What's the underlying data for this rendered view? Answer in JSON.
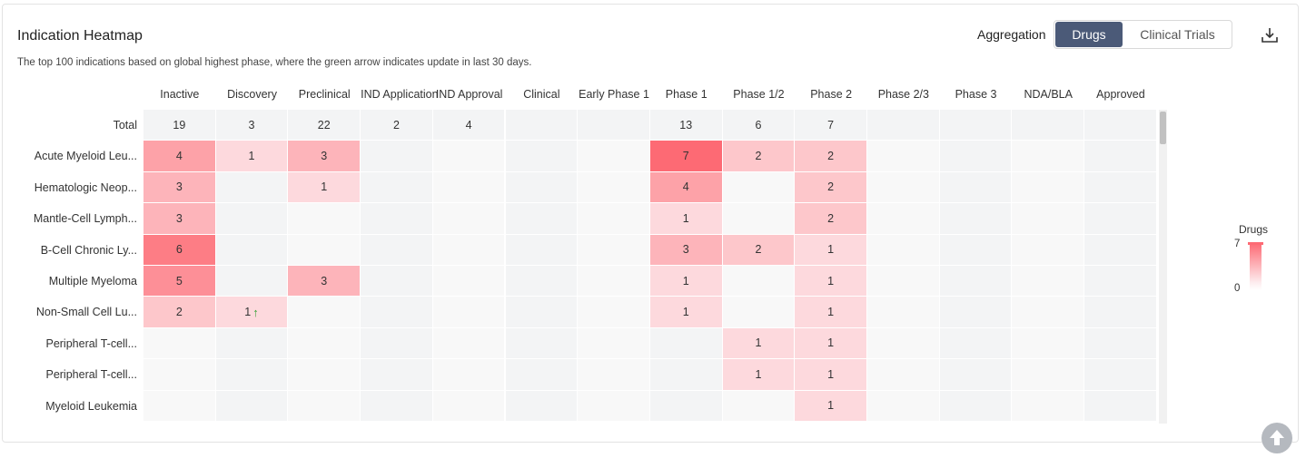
{
  "header": {
    "title": "Indication Heatmap",
    "subtitle": "The top 100 indications based on global highest phase, where the green arrow indicates update in last 30 days.",
    "aggregation_label": "Aggregation",
    "aggregation_options": [
      "Drugs",
      "Clinical Trials"
    ],
    "aggregation_selected": "Drugs",
    "download_icon": "download-icon"
  },
  "legend": {
    "title": "Drugs",
    "max": "7",
    "min": "0",
    "color_high": "#fd6a74",
    "color_low": "#fdeef0"
  },
  "chart_data": {
    "type": "heatmap",
    "title": "Indication Heatmap",
    "columns": [
      "Inactive",
      "Discovery",
      "Preclinical",
      "IND Application",
      "IND Approval",
      "Clinical",
      "Early Phase 1",
      "Phase 1",
      "Phase 1/2",
      "Phase 2",
      "Phase 2/3",
      "Phase 3",
      "NDA/BLA",
      "Approved"
    ],
    "totals": {
      "label": "Total",
      "values": [
        19,
        3,
        22,
        2,
        4,
        null,
        null,
        13,
        6,
        7,
        null,
        null,
        null,
        null
      ]
    },
    "rows": [
      {
        "label": "Acute Myeloid Leu...",
        "values": [
          4,
          1,
          3,
          null,
          null,
          null,
          null,
          7,
          2,
          2,
          null,
          null,
          null,
          null
        ],
        "updated": []
      },
      {
        "label": "Hematologic Neop...",
        "values": [
          3,
          null,
          1,
          null,
          null,
          null,
          null,
          4,
          null,
          2,
          null,
          null,
          null,
          null
        ],
        "updated": []
      },
      {
        "label": "Mantle-Cell Lymph...",
        "values": [
          3,
          null,
          null,
          null,
          null,
          null,
          null,
          1,
          null,
          2,
          null,
          null,
          null,
          null
        ],
        "updated": []
      },
      {
        "label": "B-Cell Chronic Ly...",
        "values": [
          6,
          null,
          null,
          null,
          null,
          null,
          null,
          3,
          2,
          1,
          null,
          null,
          null,
          null
        ],
        "updated": []
      },
      {
        "label": "Multiple Myeloma",
        "values": [
          5,
          null,
          3,
          null,
          null,
          null,
          null,
          1,
          null,
          1,
          null,
          null,
          null,
          null
        ],
        "updated": []
      },
      {
        "label": "Non-Small Cell Lu...",
        "values": [
          2,
          1,
          null,
          null,
          null,
          null,
          null,
          1,
          null,
          1,
          null,
          null,
          null,
          null
        ],
        "updated": [
          1
        ]
      },
      {
        "label": "Peripheral T-cell...",
        "values": [
          null,
          null,
          null,
          null,
          null,
          null,
          null,
          null,
          1,
          1,
          null,
          null,
          null,
          null
        ],
        "updated": []
      },
      {
        "label": "Peripheral T-cell...",
        "values": [
          null,
          null,
          null,
          null,
          null,
          null,
          null,
          null,
          1,
          1,
          null,
          null,
          null,
          null
        ],
        "updated": []
      },
      {
        "label": "Myeloid Leukemia",
        "values": [
          null,
          null,
          null,
          null,
          null,
          null,
          null,
          null,
          null,
          1,
          null,
          null,
          null,
          null
        ],
        "updated": []
      }
    ],
    "color_scale": {
      "min": 0,
      "max": 7
    },
    "update_marker": "↑"
  }
}
